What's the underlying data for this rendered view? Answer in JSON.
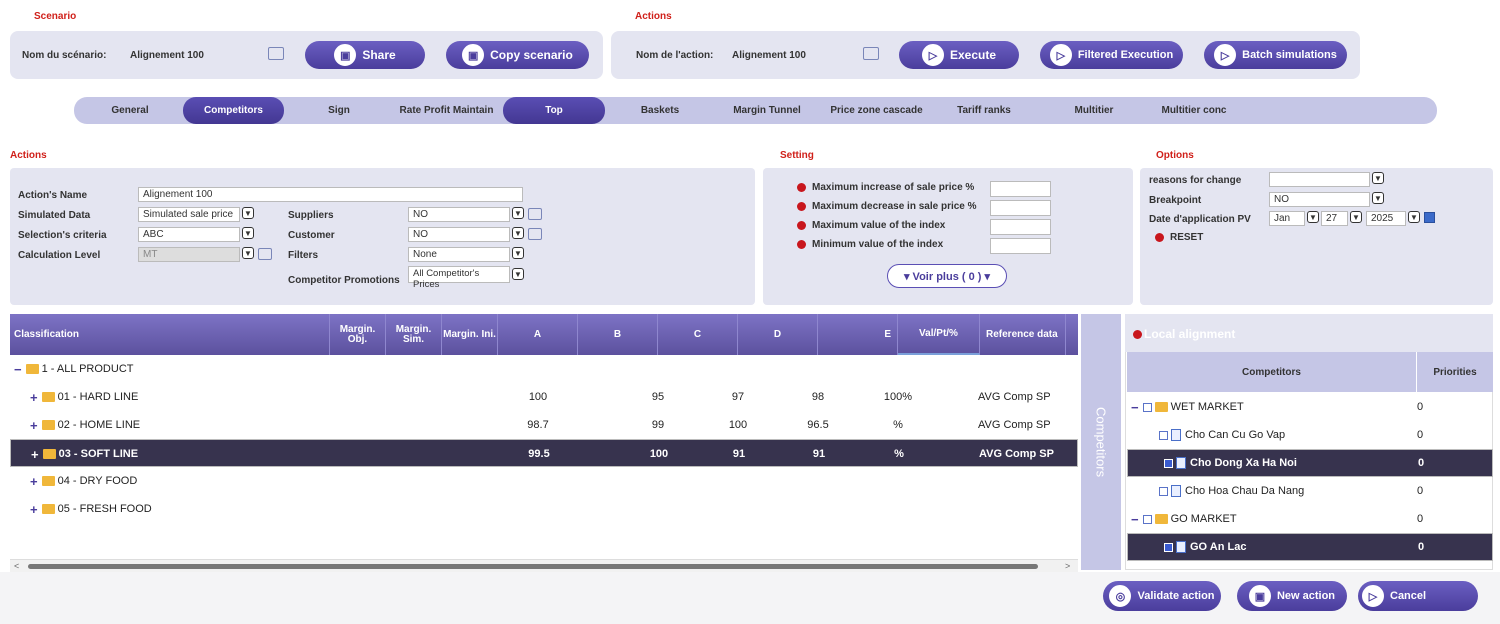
{
  "scenario": {
    "title": "Scenario",
    "name_label": "Nom du scénario:",
    "name_value": "Alignement 100",
    "share_label": "Share",
    "copy_label": "Copy scenario"
  },
  "actions_top": {
    "title": "Actions",
    "name_label": "Nom de l'action:",
    "name_value": "Alignement 100",
    "execute_label": "Execute",
    "filtered_label": "Filtered Execution",
    "batch_label": "Batch simulations"
  },
  "tabs": [
    "General",
    "Competitors",
    "Sign",
    "Rate Profit Maintain",
    "Top",
    "Baskets",
    "Margin Tunnel",
    "Price zone cascade",
    "Tariff ranks",
    "Multitier",
    "Multitier conc"
  ],
  "actions_panel": {
    "title": "Actions",
    "action_name_label": "Action's Name",
    "action_name_value": "Alignement 100",
    "simulated_data_label": "Simulated Data",
    "simulated_data_value": "Simulated sale price",
    "selection_label": "Selection's criteria",
    "selection_value": "ABC",
    "calc_level_label": "Calculation Level",
    "calc_level_value": "MT",
    "suppliers_label": "Suppliers",
    "suppliers_value": "NO",
    "customer_label": "Customer",
    "customer_value": "NO",
    "filters_label": "Filters",
    "filters_value": "None",
    "promo_label": "Competitor Promotions",
    "promo_value": "All Competitor's Prices"
  },
  "setting": {
    "title": "Setting",
    "max_increase": "Maximum increase of sale price %",
    "max_decrease": "Maximum decrease in sale price %",
    "max_index": "Maximum value of the index",
    "min_index": "Minimum value of the index",
    "voir_plus": "▾ Voir plus ( 0 ) ▾"
  },
  "options": {
    "title": "Options",
    "reasons_label": "reasons for change",
    "breakpoint_label": "Breakpoint",
    "breakpoint_value": "NO",
    "date_label": "Date d'application PV",
    "month": "Jan",
    "day": "27",
    "year": "2025",
    "reset_label": "RESET"
  },
  "grid": {
    "headers": [
      "Classification",
      "Margin. Obj.",
      "Margin. Sim.",
      "Margin. Ini.",
      "A",
      "B",
      "C",
      "D",
      "E",
      "Val/Pt/%",
      "Reference data"
    ],
    "rows": [
      {
        "label": "1 - ALL PRODUCT",
        "a": "",
        "b": "",
        "c": "",
        "d": "",
        "e": "",
        "ref": ""
      },
      {
        "label": "01 - HARD LINE",
        "a": "100",
        "b": "95",
        "c": "97",
        "d": "98",
        "e": "100%",
        "ref": "AVG Comp SP"
      },
      {
        "label": "02 - HOME LINE",
        "a": "98.7",
        "b": "99",
        "c": "100",
        "d": "96.5",
        "e": "%",
        "ref": "AVG Comp SP"
      },
      {
        "label": "03 - SOFT LINE",
        "a": "99.5",
        "b": "100",
        "c": "91",
        "d": "91",
        "e": "%",
        "ref": "AVG Comp SP"
      },
      {
        "label": "04 - DRY FOOD",
        "a": "",
        "b": "",
        "c": "",
        "d": "",
        "e": "",
        "ref": ""
      },
      {
        "label": "05 - FRESH FOOD",
        "a": "",
        "b": "",
        "c": "",
        "d": "",
        "e": "",
        "ref": ""
      }
    ]
  },
  "side_tab_label": "Competitors",
  "local_alignment": {
    "title": "Local alignment",
    "col_competitors": "Competitors",
    "col_priorities": "Priorities",
    "rows": [
      {
        "label": "WET MARKET",
        "priority": "0"
      },
      {
        "label": "Cho Can Cu Go Vap",
        "priority": "0"
      },
      {
        "label": "Cho Dong Xa Ha Noi",
        "priority": "0"
      },
      {
        "label": "Cho Hoa Chau Da Nang",
        "priority": "0"
      },
      {
        "label": "GO MARKET",
        "priority": "0"
      },
      {
        "label": "GO An Lac",
        "priority": "0"
      }
    ]
  },
  "footer": {
    "validate_label": "Validate action",
    "new_label": "New action",
    "cancel_label": "Cancel"
  }
}
